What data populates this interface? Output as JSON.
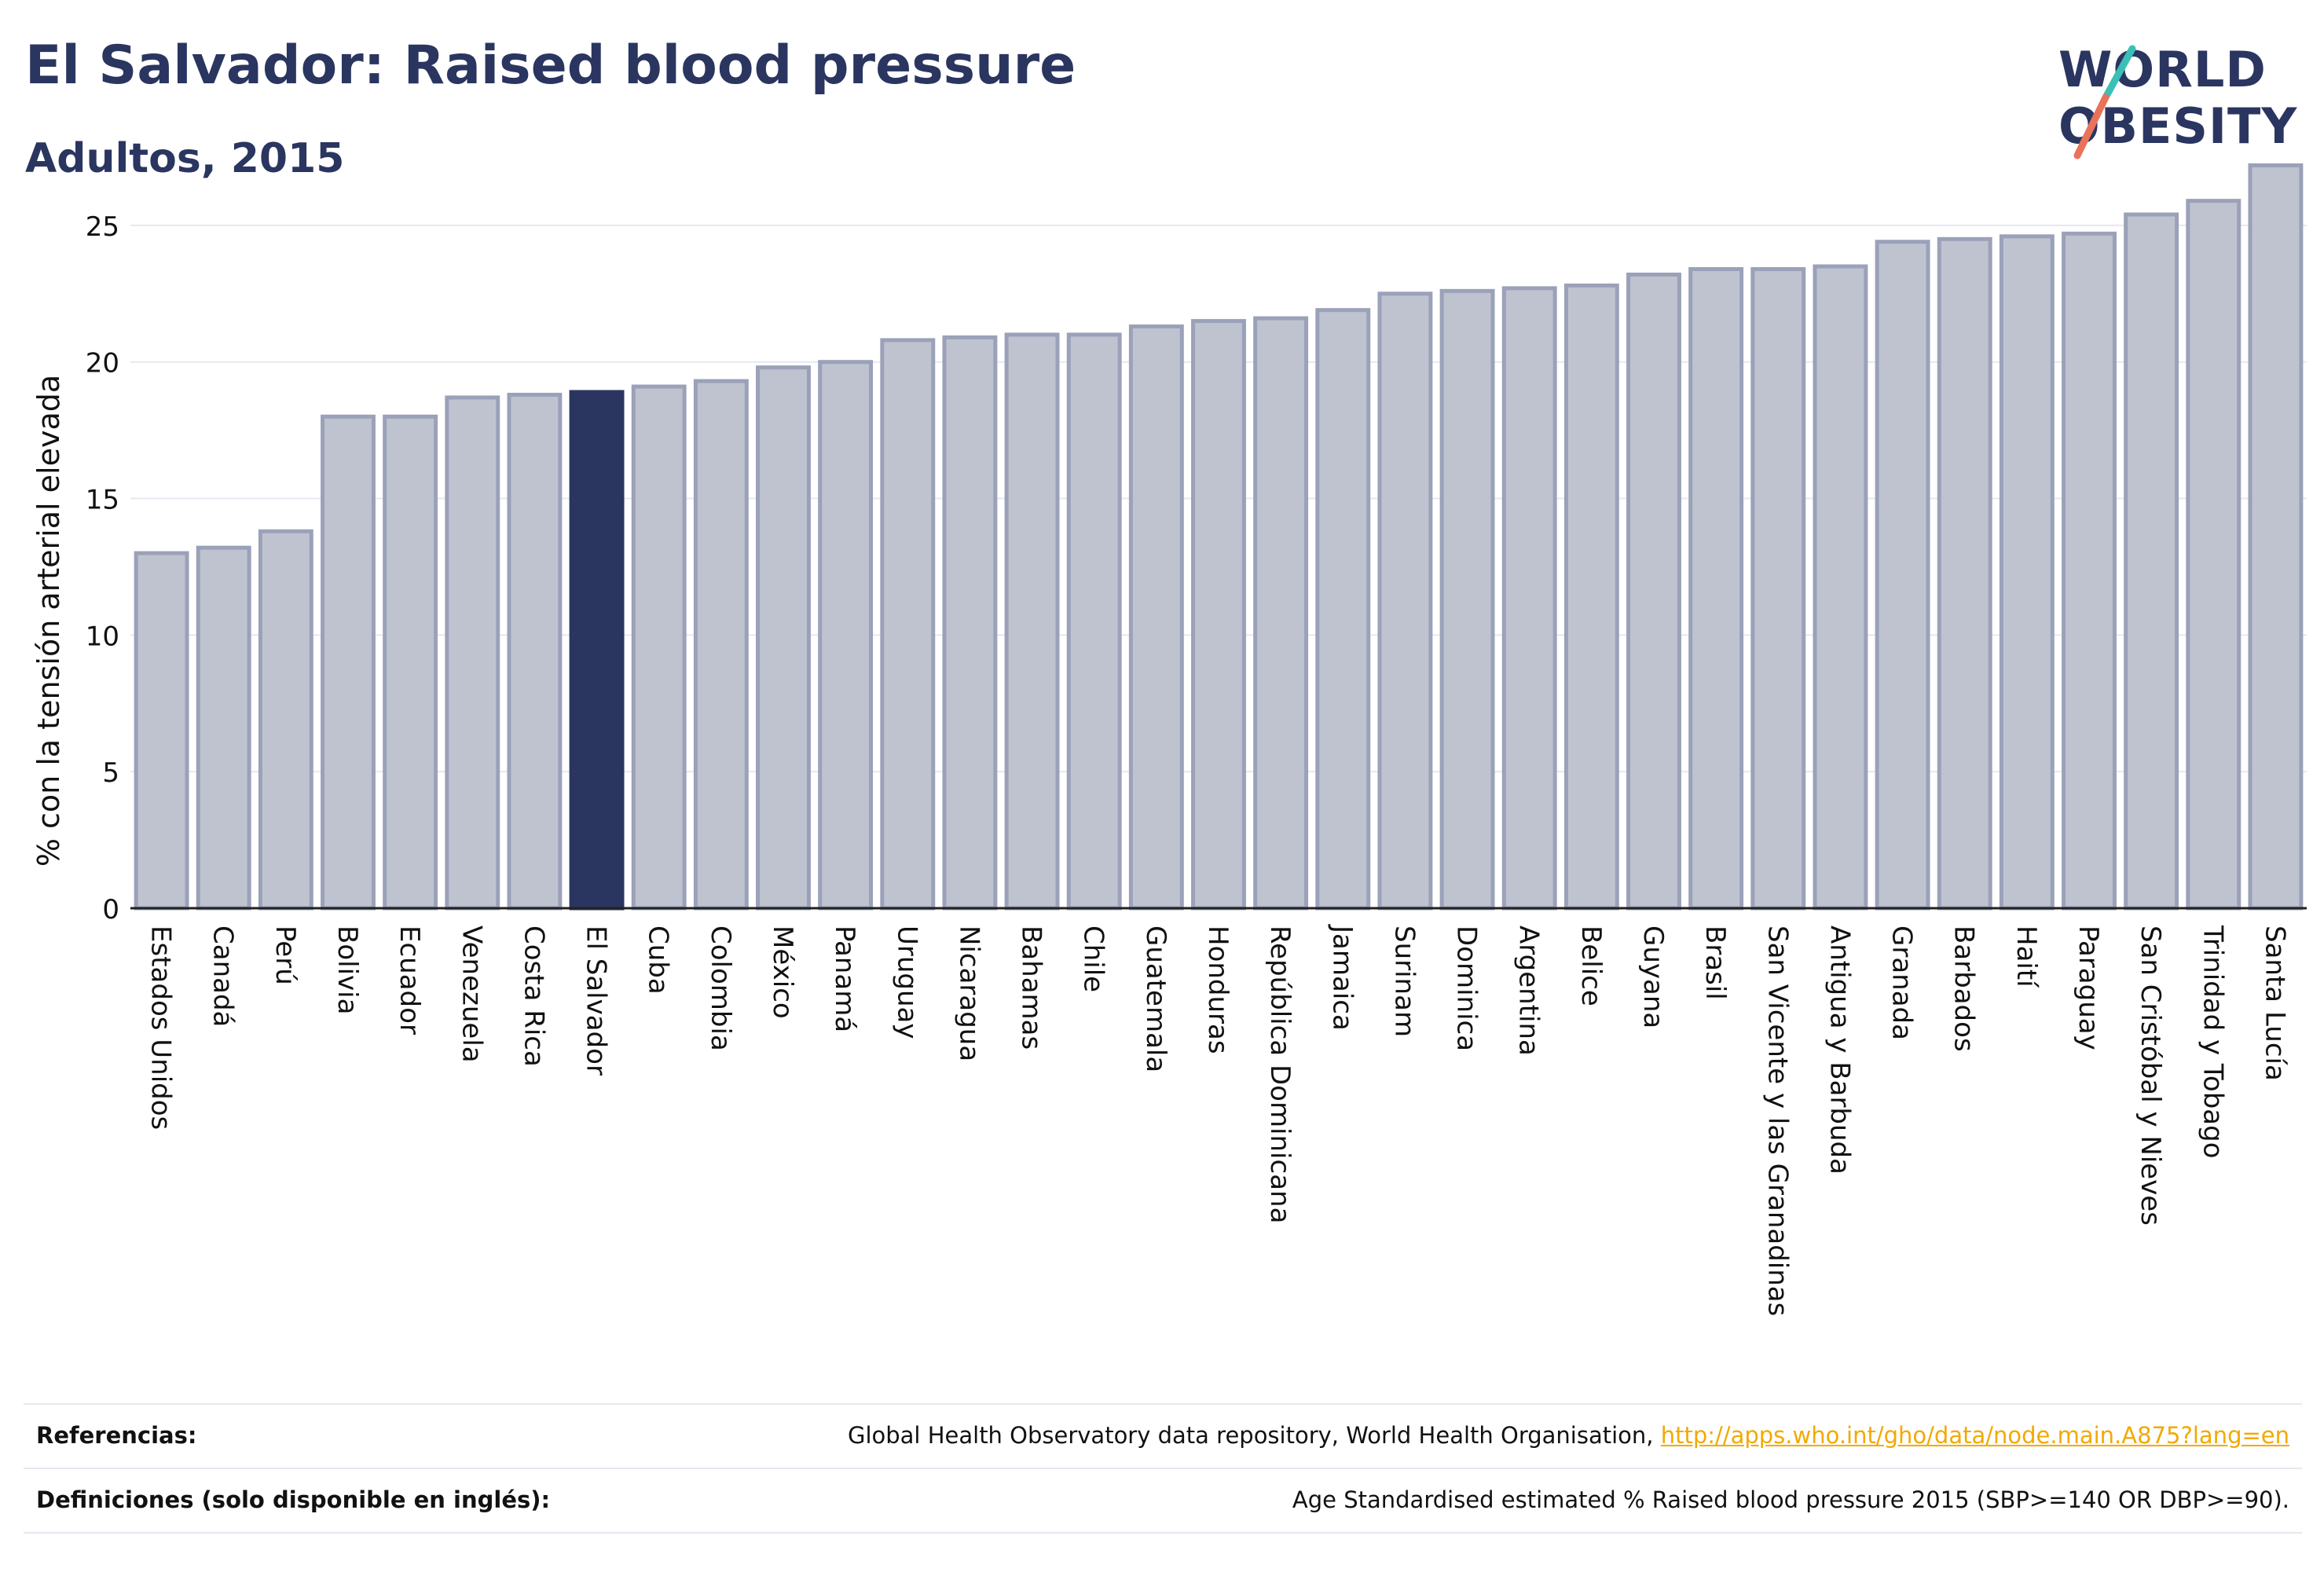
{
  "header": {
    "title": "El Salvador: Raised blood pressure",
    "subtitle": "Adultos, 2015"
  },
  "logo": {
    "line1": "WORLD",
    "line2": "OBESITY",
    "text_color": "#2a3560",
    "slash_colors": [
      "#3bbfb6",
      "#e8735a"
    ]
  },
  "chart_data": {
    "type": "bar",
    "ylabel": "% con la tensión arterial elevada",
    "xlabel": "",
    "ylim": [
      0,
      27.5
    ],
    "yticks": [
      0,
      5,
      10,
      15,
      20,
      25
    ],
    "grid": true,
    "highlight_category": "El Salvador",
    "colors": {
      "bar": "#bfc3d0",
      "bar_border": "#9aa1b8",
      "highlight": "#2a3560"
    },
    "categories": [
      "Estados Unidos",
      "Canadá",
      "Perú",
      "Bolivia",
      "Ecuador",
      "Venezuela",
      "Costa Rica",
      "El Salvador",
      "Cuba",
      "Colombia",
      "México",
      "Panamá",
      "Uruguay",
      "Nicaragua",
      "Bahamas",
      "Chile",
      "Guatemala",
      "Honduras",
      "República Dominicana",
      "Jamaica",
      "Surinam",
      "Dominica",
      "Argentina",
      "Belice",
      "Guyana",
      "Brasil",
      "San Vicente y las Granadinas",
      "Antigua y Barbuda",
      "Granada",
      "Barbados",
      "Haití",
      "Paraguay",
      "San Cristóbal y Nieves",
      "Trinidad y Tobago",
      "Santa Lucía"
    ],
    "values": [
      13.0,
      13.2,
      13.8,
      18.0,
      18.0,
      18.7,
      18.8,
      18.9,
      19.1,
      19.3,
      19.8,
      20.0,
      20.8,
      20.9,
      21.0,
      21.0,
      21.3,
      21.5,
      21.6,
      21.9,
      22.5,
      22.6,
      22.7,
      22.8,
      23.2,
      23.4,
      23.4,
      23.5,
      24.4,
      24.5,
      24.6,
      24.7,
      25.4,
      25.9,
      27.2
    ]
  },
  "footer": {
    "references_label": "Referencias:",
    "references_text": "Global Health Observatory data repository, World Health Organisation, ",
    "references_link": "http://apps.who.int/gho/data/node.main.A875?lang=en",
    "definitions_label": "Definiciones (solo disponible en inglés):",
    "definitions_text": "Age Standardised estimated % Raised blood pressure 2015 (SBP>=140 OR DBP>=90)."
  }
}
